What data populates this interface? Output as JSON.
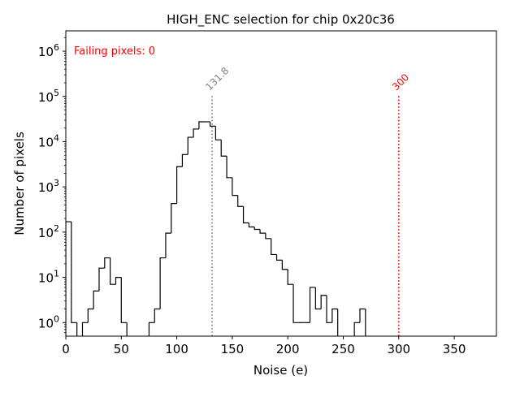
{
  "chart_data": {
    "type": "histogram",
    "title": "HIGH_ENC selection for chip 0x20c36",
    "xlabel": "Noise (e)",
    "ylabel": "Number of pixels",
    "xlim": [
      0,
      388
    ],
    "ylim_log10": [
      -0.3,
      6.45
    ],
    "yscale": "log",
    "x_ticks": [
      0,
      50,
      100,
      150,
      200,
      250,
      300,
      350
    ],
    "x_tick_labels": [
      "0",
      "50",
      "100",
      "150",
      "200",
      "250",
      "300",
      "350"
    ],
    "y_ticks_log10": [
      0,
      1,
      2,
      3,
      4,
      5,
      6
    ],
    "y_tick_labels": [
      {
        "base": "10",
        "exp": "0"
      },
      {
        "base": "10",
        "exp": "1"
      },
      {
        "base": "10",
        "exp": "2"
      },
      {
        "base": "10",
        "exp": "3"
      },
      {
        "base": "10",
        "exp": "4"
      },
      {
        "base": "10",
        "exp": "5"
      },
      {
        "base": "10",
        "exp": "6"
      }
    ],
    "bin_width": 5,
    "bin_start": 0,
    "counts": [
      170,
      1,
      0,
      1,
      2,
      5,
      16,
      27,
      7,
      10,
      1,
      0,
      0,
      0,
      0,
      1,
      2,
      27,
      95,
      430,
      2800,
      5200,
      12500,
      19000,
      27500,
      27500,
      22000,
      11000,
      4800,
      1600,
      650,
      370,
      160,
      130,
      115,
      95,
      72,
      32,
      24,
      15,
      7,
      1,
      1,
      1,
      6,
      2,
      4,
      1,
      2,
      0,
      0,
      0,
      1,
      2,
      0,
      0,
      0,
      0,
      0,
      0,
      0,
      0,
      0,
      0,
      0,
      0,
      0,
      0,
      0,
      0,
      0,
      0,
      0,
      0,
      0,
      0,
      0
    ],
    "annotation": "Failing pixels: 0",
    "annotation_color": "#ff0000",
    "line_color": "#000000",
    "vlines": [
      {
        "x": 131.8,
        "label": "131.8",
        "color": "#808080",
        "top_log10": 5.05
      },
      {
        "x": 300,
        "label": "300",
        "color": "#ff0000",
        "top_log10": 5.05
      }
    ]
  }
}
